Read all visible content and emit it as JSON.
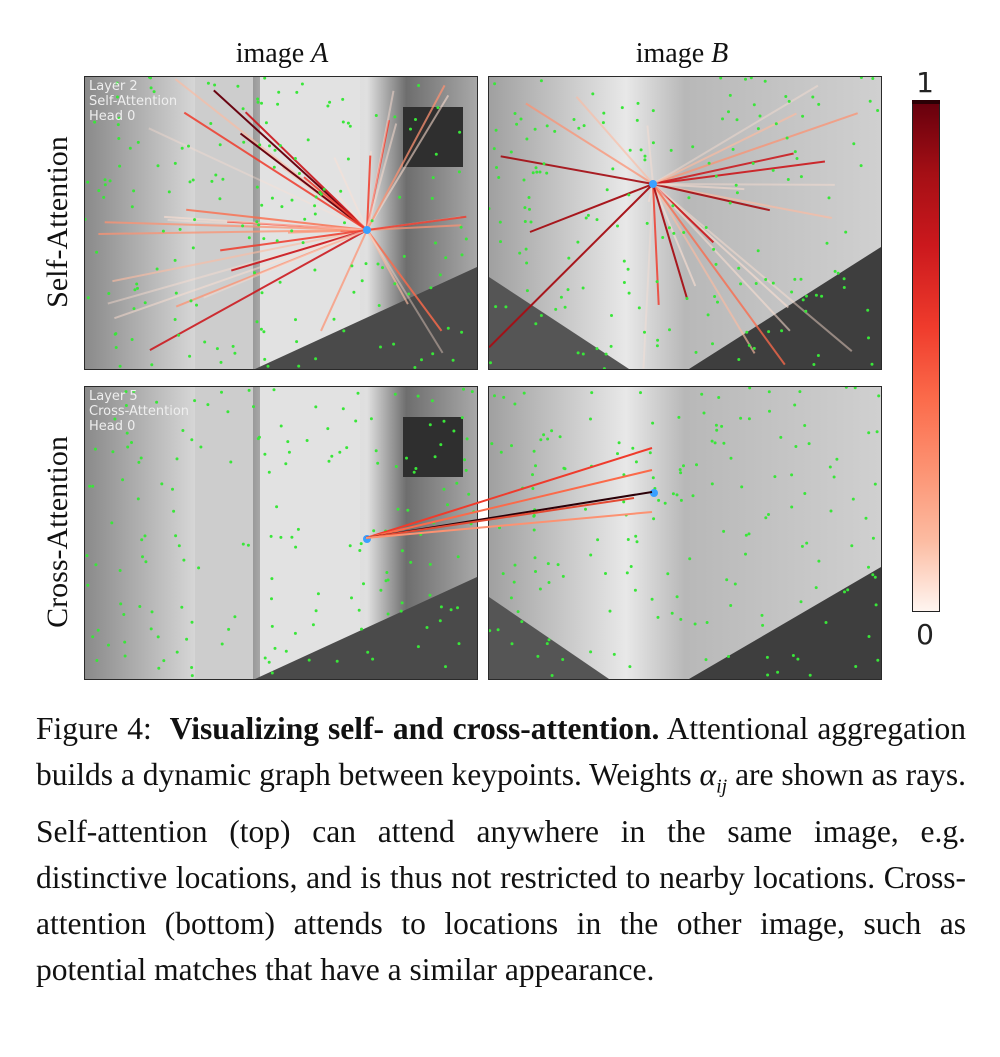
{
  "figure": {
    "column_titles": {
      "a": {
        "text": "image ",
        "var": "A"
      },
      "b": {
        "text": "image ",
        "var": "B"
      }
    },
    "row_labels": {
      "top": "Self-Attention",
      "bottom": "Cross-Attention"
    },
    "panels": {
      "top_left_note": [
        "Layer 2",
        "Self-Attention",
        "Head 0"
      ],
      "bottom_left_note": [
        "Layer 5",
        "Cross-Attention",
        "Head 0"
      ]
    },
    "colorbar": {
      "max_label": "1",
      "min_label": "0",
      "colormap": "Reds"
    },
    "colors": {
      "keypoint": "#39e639",
      "query": "#3aa0ff"
    }
  },
  "caption": {
    "prefix": "Figure 4:",
    "bold_title": "Visualizing self- and cross-attention.",
    "part1": " Attentional aggregation builds a dynamic graph between keypoints. Weights ",
    "math": "α",
    "math_sub": "ij",
    "part2": " are shown as rays. Self-attention (top) can attend anywhere in the same image, e.g. distinctive locations, and is thus not restricted to nearby locations. Cross-attention (bottom) attends to locations in the other image, such as potential matches that have a similar appearance."
  }
}
